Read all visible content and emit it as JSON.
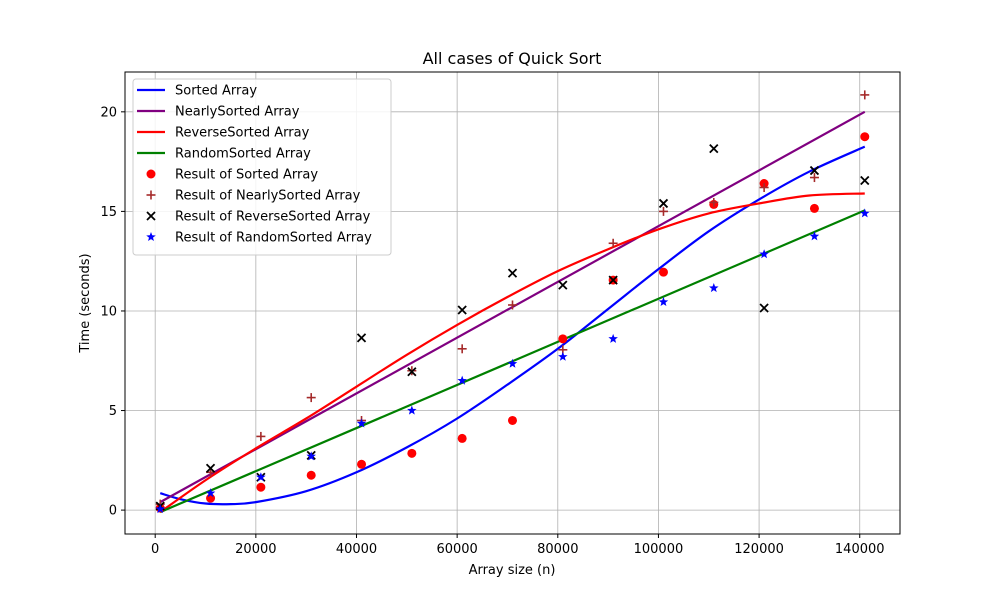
{
  "chart_data": {
    "type": "scatter",
    "title": "All cases of Quick Sort",
    "xlabel": "Array size (n)",
    "ylabel": "Time (seconds)",
    "xlim": [
      -6000,
      148000
    ],
    "ylim": [
      -1.2,
      22
    ],
    "xticks": [
      0,
      20000,
      40000,
      60000,
      80000,
      100000,
      120000,
      140000
    ],
    "yticks": [
      0,
      5,
      10,
      15,
      20
    ],
    "grid": true,
    "legend_position": "top-left",
    "fit_lines": [
      {
        "name": "Sorted Array",
        "color": "#0000ff",
        "x": [
          1000,
          5000,
          10000,
          15000,
          20000,
          30000,
          40000,
          50000,
          60000,
          70000,
          80000,
          90000,
          100000,
          110000,
          120000,
          130000,
          141000
        ],
        "y": [
          0.85,
          0.55,
          0.33,
          0.3,
          0.4,
          0.95,
          1.9,
          3.15,
          4.6,
          6.3,
          8.1,
          10.1,
          12.1,
          14.0,
          15.6,
          17.0,
          18.25
        ]
      },
      {
        "name": "NearlySorted Array",
        "color": "#800080",
        "x": [
          1000,
          141000
        ],
        "y": [
          0.4,
          20.0
        ]
      },
      {
        "name": "ReverseSorted Array",
        "color": "#ff0000",
        "x": [
          1000,
          10000,
          20000,
          30000,
          40000,
          50000,
          60000,
          70000,
          80000,
          90000,
          100000,
          110000,
          120000,
          130000,
          141000
        ],
        "y": [
          -0.1,
          1.5,
          3.1,
          4.6,
          6.2,
          7.8,
          9.3,
          10.7,
          12.0,
          13.1,
          14.1,
          14.9,
          15.4,
          15.8,
          15.9
        ]
      },
      {
        "name": "RandomSorted Array",
        "color": "#008000",
        "x": [
          1000,
          141000
        ],
        "y": [
          -0.1,
          15.05
        ]
      }
    ],
    "scatter_series": [
      {
        "name": "Result of Sorted Array",
        "marker": "circle",
        "color": "#ff0000",
        "x": [
          1000,
          11000,
          21000,
          31000,
          41000,
          51000,
          61000,
          71000,
          81000,
          91000,
          101000,
          111000,
          121000,
          131000,
          141000
        ],
        "y": [
          0.1,
          0.6,
          1.15,
          1.75,
          2.3,
          2.85,
          3.6,
          4.5,
          8.6,
          11.55,
          11.95,
          15.35,
          16.4,
          15.15,
          18.75
        ]
      },
      {
        "name": "Result of NearlySorted Array",
        "marker": "plus",
        "color": "#a52a2a",
        "x": [
          1000,
          11000,
          21000,
          31000,
          41000,
          51000,
          61000,
          71000,
          81000,
          91000,
          101000,
          111000,
          121000,
          131000,
          141000
        ],
        "y": [
          0.3,
          1.9,
          3.7,
          5.65,
          4.5,
          7.0,
          8.1,
          10.3,
          8.05,
          13.4,
          15.0,
          15.45,
          16.2,
          16.7,
          20.85
        ]
      },
      {
        "name": "Result of ReverseSorted Array",
        "marker": "x",
        "color": "#000000",
        "x": [
          1000,
          11000,
          21000,
          31000,
          41000,
          51000,
          61000,
          71000,
          81000,
          91000,
          101000,
          111000,
          121000,
          131000,
          141000
        ],
        "y": [
          0.2,
          2.1,
          1.65,
          2.75,
          8.65,
          6.95,
          10.05,
          11.9,
          11.3,
          11.55,
          15.4,
          18.15,
          10.15,
          17.05,
          16.55
        ]
      },
      {
        "name": "Result of RandomSorted Array",
        "marker": "star",
        "color": "#0000ff",
        "x": [
          1000,
          11000,
          21000,
          31000,
          41000,
          51000,
          61000,
          71000,
          81000,
          91000,
          101000,
          111000,
          121000,
          131000,
          141000
        ],
        "y": [
          0.05,
          0.85,
          1.65,
          2.7,
          4.35,
          5.0,
          6.5,
          7.35,
          7.7,
          8.6,
          10.45,
          11.15,
          12.85,
          13.75,
          14.9
        ]
      }
    ]
  }
}
